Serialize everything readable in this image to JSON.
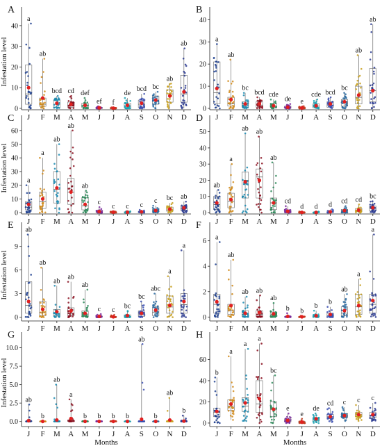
{
  "chart_data": {
    "type": "box",
    "months": [
      "J",
      "F",
      "M",
      "A",
      "M",
      "J",
      "J",
      "A",
      "S",
      "O",
      "N",
      "D"
    ],
    "xlabel": "Months",
    "ylabel": "Infestation level",
    "colors": [
      "#1f3f8f",
      "#d08a1a",
      "#1a8ab0",
      "#8a1020",
      "#2e8a5a",
      "#7a2a9a",
      "#c23b1f",
      "#1aa0b0",
      "#3b4fb0",
      "#2a6aa0",
      "#c8a020",
      "#2a3a90"
    ],
    "mean_color": "#e02020",
    "panels": [
      {
        "label": "A",
        "ylim": [
          0,
          45
        ],
        "yticks": [
          0,
          10,
          20,
          30,
          40
        ],
        "letters": [
          "a",
          "ab",
          "bcd",
          "cd",
          "def",
          "ef",
          "f",
          "de",
          "bcd",
          "bc",
          "ab",
          "ab"
        ],
        "boxes": [
          {
            "min": 0,
            "q1": 2,
            "median": 7,
            "q3": 21,
            "max": 41,
            "mean": 10
          },
          {
            "min": 0,
            "q1": 1,
            "median": 2,
            "q3": 5,
            "max": 24,
            "mean": 5
          },
          {
            "min": 0,
            "q1": 0.5,
            "median": 2,
            "q3": 4,
            "max": 6,
            "mean": 2.5
          },
          {
            "min": 0,
            "q1": 0.5,
            "median": 1.5,
            "q3": 3,
            "max": 6,
            "mean": 2
          },
          {
            "min": 0,
            "q1": 0.3,
            "median": 1,
            "q3": 2.5,
            "max": 5,
            "mean": 1.5
          },
          {
            "min": 0,
            "q1": 0,
            "median": 0,
            "q3": 0.5,
            "max": 1,
            "mean": 0.3
          },
          {
            "min": 0,
            "q1": 0,
            "median": 0,
            "q3": 0.2,
            "max": 0.5,
            "mean": 0.1
          },
          {
            "min": 0,
            "q1": 0.3,
            "median": 1,
            "q3": 2.5,
            "max": 5,
            "mean": 1.5
          },
          {
            "min": 0,
            "q1": 0.5,
            "median": 2,
            "q3": 4,
            "max": 7,
            "mean": 2.5
          },
          {
            "min": 0,
            "q1": 2,
            "median": 4,
            "q3": 6,
            "max": 8,
            "mean": 4
          },
          {
            "min": 0,
            "q1": 3,
            "median": 7,
            "q3": 9,
            "max": 12,
            "mean": 6
          },
          {
            "min": 0,
            "q1": 3,
            "median": 7,
            "q3": 16,
            "max": 29,
            "mean": 8
          }
        ]
      },
      {
        "label": "B",
        "ylim": [
          0,
          42
        ],
        "yticks": [
          0,
          10,
          20,
          30,
          40
        ],
        "letters": [
          "a",
          "ab",
          "bc",
          "bcd",
          "cde",
          "de",
          "e",
          "cde",
          "bcd",
          "bc",
          "ab",
          "ab"
        ],
        "boxes": [
          {
            "min": 0,
            "q1": 2,
            "median": 7,
            "q3": 21,
            "max": 29,
            "mean": 9
          },
          {
            "min": 0,
            "q1": 1,
            "median": 2,
            "q3": 5,
            "max": 22,
            "mean": 4
          },
          {
            "min": 0,
            "q1": 0.5,
            "median": 2,
            "q3": 3,
            "max": 7,
            "mean": 2
          },
          {
            "min": 0,
            "q1": 0.5,
            "median": 1.5,
            "q3": 3,
            "max": 5,
            "mean": 2
          },
          {
            "min": 0,
            "q1": 0.3,
            "median": 1,
            "q3": 2,
            "max": 4,
            "mean": 1.2
          },
          {
            "min": 0,
            "q1": 0,
            "median": 0.3,
            "q3": 1,
            "max": 2,
            "mean": 0.5
          },
          {
            "min": 0,
            "q1": 0,
            "median": 0,
            "q3": 0.3,
            "max": 1,
            "mean": 0.2
          },
          {
            "min": 0,
            "q1": 0.3,
            "median": 1,
            "q3": 2,
            "max": 4,
            "mean": 1.2
          },
          {
            "min": 0,
            "q1": 0.5,
            "median": 1.5,
            "q3": 3,
            "max": 5,
            "mean": 2
          },
          {
            "min": 0,
            "q1": 1,
            "median": 2.5,
            "q3": 4,
            "max": 7,
            "mean": 3
          },
          {
            "min": 0,
            "q1": 2,
            "median": 5,
            "q3": 10,
            "max": 24,
            "mean": 6
          },
          {
            "min": 0,
            "q1": 3,
            "median": 8,
            "q3": 18,
            "max": 38,
            "mean": 8
          }
        ]
      },
      {
        "label": "C",
        "ylim": [
          0,
          65
        ],
        "yticks": [
          0,
          10,
          20,
          30,
          40,
          50,
          60
        ],
        "letters": [
          "a",
          "a",
          "ab",
          "ab",
          "ab",
          "c",
          "c",
          "c",
          "c",
          "c",
          "bc",
          "ab"
        ],
        "boxes": [
          {
            "min": 0,
            "q1": 2,
            "median": 4,
            "q3": 8,
            "max": 20,
            "mean": 6
          },
          {
            "min": 0,
            "q1": 3,
            "median": 8,
            "q3": 15,
            "max": 40,
            "mean": 10
          },
          {
            "min": 0,
            "q1": 7,
            "median": 17,
            "q3": 30,
            "max": 50,
            "mean": 18
          },
          {
            "min": 0,
            "q1": 6,
            "median": 15,
            "q3": 25,
            "max": 60,
            "mean": 15
          },
          {
            "min": 0,
            "q1": 2,
            "median": 5,
            "q3": 11,
            "max": 16,
            "mean": 6
          },
          {
            "min": 0,
            "q1": 0,
            "median": 0.5,
            "q3": 1.5,
            "max": 4,
            "mean": 0.8
          },
          {
            "min": 0,
            "q1": 0,
            "median": 0.2,
            "q3": 0.6,
            "max": 1,
            "mean": 0.3
          },
          {
            "min": 0,
            "q1": 0,
            "median": 0.2,
            "q3": 0.6,
            "max": 1,
            "mean": 0.3
          },
          {
            "min": 0,
            "q1": 0,
            "median": 0.5,
            "q3": 1,
            "max": 2,
            "mean": 0.6
          },
          {
            "min": 0,
            "q1": 0.5,
            "median": 1.5,
            "q3": 2.5,
            "max": 5,
            "mean": 1.5
          },
          {
            "min": 0,
            "q1": 1,
            "median": 2,
            "q3": 4,
            "max": 7,
            "mean": 2.5
          },
          {
            "min": 0,
            "q1": 1.5,
            "median": 3,
            "q3": 5,
            "max": 8,
            "mean": 3.5
          }
        ]
      },
      {
        "label": "D",
        "ylim": [
          0,
          55
        ],
        "yticks": [
          0,
          10,
          20,
          30,
          40,
          50
        ],
        "letters": [
          "ab",
          "a",
          "ab",
          "ab",
          "ab",
          "cd",
          "d",
          "d",
          "d",
          "cd",
          "cd",
          "bc"
        ],
        "boxes": [
          {
            "min": 0,
            "q1": 2,
            "median": 5,
            "q3": 10,
            "max": 14,
            "mean": 6
          },
          {
            "min": 0,
            "q1": 3,
            "median": 7,
            "q3": 12,
            "max": 30,
            "mean": 8
          },
          {
            "min": 0,
            "q1": 9,
            "median": 20,
            "q3": 25,
            "max": 49,
            "mean": 19
          },
          {
            "min": 0,
            "q1": 9,
            "median": 22,
            "q3": 27,
            "max": 47,
            "mean": 20
          },
          {
            "min": 0,
            "q1": 2,
            "median": 6,
            "q3": 9,
            "max": 31,
            "mean": 6
          },
          {
            "min": 0,
            "q1": 0,
            "median": 0.5,
            "q3": 1.5,
            "max": 4,
            "mean": 0.8
          },
          {
            "min": 0,
            "q1": 0,
            "median": 0.1,
            "q3": 0.3,
            "max": 0.6,
            "mean": 0.1
          },
          {
            "min": 0,
            "q1": 0,
            "median": 0.1,
            "q3": 0.3,
            "max": 0.6,
            "mean": 0.1
          },
          {
            "min": 0,
            "q1": 0,
            "median": 0.3,
            "q3": 1,
            "max": 2,
            "mean": 0.5
          },
          {
            "min": 0,
            "q1": 0.3,
            "median": 1,
            "q3": 2,
            "max": 4,
            "mean": 1.2
          },
          {
            "min": 0,
            "q1": 0.5,
            "median": 1.5,
            "q3": 2.5,
            "max": 5,
            "mean": 1.5
          },
          {
            "min": 0,
            "q1": 1,
            "median": 2.5,
            "q3": 4,
            "max": 7,
            "mean": 3
          }
        ]
      },
      {
        "label": "E",
        "ylim": [
          -0.3,
          11
        ],
        "yticks": [
          0,
          3,
          6,
          9
        ],
        "letters": [
          "ab",
          "ab",
          "ab",
          "ab",
          "ab",
          "c",
          "c",
          "bc",
          "bc",
          "abc",
          "a",
          "a"
        ],
        "boxes": [
          {
            "min": 0,
            "q1": 0.5,
            "median": 1.5,
            "q3": 4.5,
            "max": 10.5,
            "mean": 2
          },
          {
            "min": 0,
            "q1": 0.2,
            "median": 0.6,
            "q3": 2,
            "max": 6.3,
            "mean": 1
          },
          {
            "min": 0,
            "q1": 0.2,
            "median": 0.5,
            "q3": 1,
            "max": 4,
            "mean": 0.7
          },
          {
            "min": 0,
            "q1": 0.2,
            "median": 0.5,
            "q3": 1.2,
            "max": 4.5,
            "mean": 0.8
          },
          {
            "min": 0,
            "q1": 0.1,
            "median": 0.4,
            "q3": 0.8,
            "max": 3.5,
            "mean": 0.5
          },
          {
            "min": 0,
            "q1": 0,
            "median": 0.05,
            "q3": 0.15,
            "max": 0.4,
            "mean": 0.1
          },
          {
            "min": 0,
            "q1": 0,
            "median": 0.03,
            "q3": 0.1,
            "max": 0.3,
            "mean": 0.05
          },
          {
            "min": 0,
            "q1": 0,
            "median": 0.1,
            "q3": 0.3,
            "max": 0.8,
            "mean": 0.2
          },
          {
            "min": 0,
            "q1": 0.1,
            "median": 0.3,
            "q3": 0.8,
            "max": 2,
            "mean": 0.5
          },
          {
            "min": 0,
            "q1": 0.2,
            "median": 0.6,
            "q3": 1.3,
            "max": 3,
            "mean": 0.9
          },
          {
            "min": 0,
            "q1": 0.5,
            "median": 1.3,
            "q3": 2.7,
            "max": 5.2,
            "mean": 1.5
          },
          {
            "min": 0,
            "q1": 0.5,
            "median": 1.6,
            "q3": 3,
            "max": 8.5,
            "mean": 2
          }
        ]
      },
      {
        "label": "F",
        "ylim": [
          -0.2,
          6.8
        ],
        "yticks": [
          0,
          2,
          4,
          6
        ],
        "letters": [
          "a",
          "ab",
          "ab",
          "ab",
          "ab",
          "b",
          "b",
          "b",
          "b",
          "ab",
          "a",
          "a"
        ],
        "boxes": [
          {
            "min": 0,
            "q1": 0.3,
            "median": 1,
            "q3": 1.8,
            "max": 5.9,
            "mean": 1.2
          },
          {
            "min": 0,
            "q1": 0.2,
            "median": 0.5,
            "q3": 1,
            "max": 4.5,
            "mean": 0.9
          },
          {
            "min": 0,
            "q1": 0.05,
            "median": 0.2,
            "q3": 0.5,
            "max": 1.6,
            "mean": 0.3
          },
          {
            "min": 0,
            "q1": 0.05,
            "median": 0.2,
            "q3": 0.5,
            "max": 1.7,
            "mean": 0.35
          },
          {
            "min": 0,
            "q1": 0.05,
            "median": 0.15,
            "q3": 0.4,
            "max": 1.1,
            "mean": 0.25
          },
          {
            "min": 0,
            "q1": 0,
            "median": 0.02,
            "q3": 0.05,
            "max": 0.3,
            "mean": 0.05
          },
          {
            "min": 0,
            "q1": 0,
            "median": 0.01,
            "q3": 0.03,
            "max": 0.1,
            "mean": 0.02
          },
          {
            "min": 0,
            "q1": 0,
            "median": 0.05,
            "q3": 0.1,
            "max": 0.5,
            "mean": 0.1
          },
          {
            "min": 0,
            "q1": 0,
            "median": 0.1,
            "q3": 0.3,
            "max": 0.8,
            "mean": 0.2
          },
          {
            "min": 0,
            "q1": 0.1,
            "median": 0.3,
            "q3": 0.8,
            "max": 1.8,
            "mean": 0.5
          },
          {
            "min": 0,
            "q1": 0.2,
            "median": 0.8,
            "q3": 1.8,
            "max": 3,
            "mean": 0.9
          },
          {
            "min": 0,
            "q1": 0.3,
            "median": 1,
            "q3": 1.8,
            "max": 6.5,
            "mean": 1.3
          }
        ]
      },
      {
        "label": "G",
        "ylim": [
          -0.5,
          11
        ],
        "yticks": [
          0.0,
          2.5,
          5.0,
          7.5,
          10.0
        ],
        "letters": [
          "ab",
          "b",
          "ab",
          "a",
          "b",
          "b",
          "b",
          "b",
          "ab",
          "b",
          "ab",
          "b"
        ],
        "boxes": [
          {
            "min": 0,
            "q1": 0,
            "median": 0.02,
            "q3": 0.05,
            "max": 2.3,
            "mean": 0.1
          },
          {
            "min": 0,
            "q1": 0,
            "median": 0,
            "q3": 0.02,
            "max": 0.05,
            "mean": 0.01
          },
          {
            "min": 0,
            "q1": 0,
            "median": 0.02,
            "q3": 0.05,
            "max": 5,
            "mean": 0.2
          },
          {
            "min": 0,
            "q1": 0,
            "median": 0.05,
            "q3": 0.2,
            "max": 3,
            "mean": 0.4
          },
          {
            "min": 0,
            "q1": 0,
            "median": 0,
            "q3": 0.02,
            "max": 0.05,
            "mean": 0.01
          },
          {
            "min": 0,
            "q1": 0,
            "median": 0,
            "q3": 0.02,
            "max": 0.05,
            "mean": 0.01
          },
          {
            "min": 0,
            "q1": 0,
            "median": 0,
            "q3": 0.02,
            "max": 0.05,
            "mean": 0.01
          },
          {
            "min": 0,
            "q1": 0,
            "median": 0,
            "q3": 0.02,
            "max": 0.05,
            "mean": 0.01
          },
          {
            "min": 0,
            "q1": 0,
            "median": 0.02,
            "q3": 0.05,
            "max": 10.5,
            "mean": 0.3
          },
          {
            "min": 0,
            "q1": 0,
            "median": 0,
            "q3": 0.02,
            "max": 0.05,
            "mean": 0.01
          },
          {
            "min": 0,
            "q1": 0,
            "median": 0.02,
            "q3": 0.05,
            "max": 3.2,
            "mean": 0.2
          },
          {
            "min": 0,
            "q1": 0,
            "median": 0,
            "q3": 0.1,
            "max": 0.8,
            "mean": 0.05
          }
        ]
      },
      {
        "label": "H",
        "ylim": [
          -2,
          78
        ],
        "yticks": [
          0,
          20,
          40,
          60
        ],
        "letters": [
          "b",
          "a",
          "a",
          "a",
          "bc",
          "e",
          "e",
          "de",
          "cd",
          "c",
          "c",
          "c"
        ],
        "boxes": [
          {
            "min": 0,
            "q1": 6,
            "median": 10,
            "q3": 14,
            "max": 43,
            "mean": 11
          },
          {
            "min": 3,
            "q1": 12,
            "median": 16,
            "q3": 22,
            "max": 63,
            "mean": 18
          },
          {
            "min": 2,
            "q1": 11,
            "median": 16,
            "q3": 24,
            "max": 70,
            "mean": 19
          },
          {
            "min": 0,
            "q1": 10,
            "median": 18,
            "q3": 40,
            "max": 75,
            "mean": 23
          },
          {
            "min": 0,
            "q1": 6,
            "median": 13,
            "q3": 20,
            "max": 45,
            "mean": 13
          },
          {
            "min": 0,
            "q1": 1,
            "median": 2,
            "q3": 4,
            "max": 9,
            "mean": 2.5
          },
          {
            "min": 0,
            "q1": 0,
            "median": 0.5,
            "q3": 1.5,
            "max": 4,
            "mean": 1
          },
          {
            "min": 0,
            "q1": 2,
            "median": 4,
            "q3": 5,
            "max": 9,
            "mean": 4
          },
          {
            "min": 1,
            "q1": 4,
            "median": 6,
            "q3": 8,
            "max": 14,
            "mean": 6
          },
          {
            "min": 2,
            "q1": 5,
            "median": 7,
            "q3": 9,
            "max": 15,
            "mean": 7
          },
          {
            "min": 2,
            "q1": 6,
            "median": 8,
            "q3": 10,
            "max": 17,
            "mean": 8
          },
          {
            "min": 2,
            "q1": 5,
            "median": 7,
            "q3": 10,
            "max": 19,
            "mean": 8
          }
        ]
      }
    ]
  }
}
